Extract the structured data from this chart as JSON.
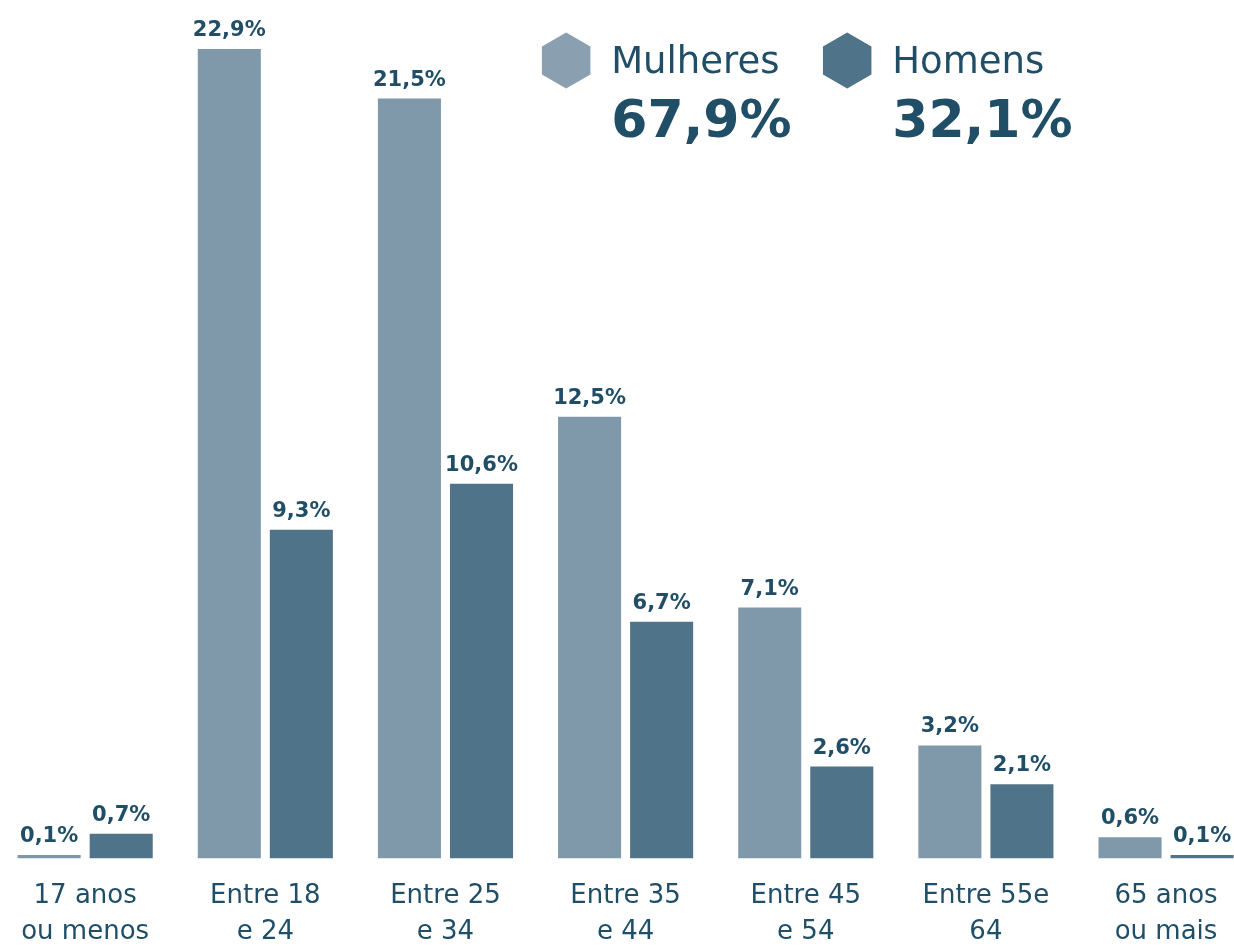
{
  "chart_data": {
    "type": "bar",
    "categories": [
      "17 anos\nou menos",
      "Entre 18\ne 24",
      "Entre 25\ne 34",
      "Entre 35\ne 44",
      "Entre 45\ne 54",
      "Entre 55e\n64",
      "65 anos\nou mais"
    ],
    "series": [
      {
        "name": "Mulheres",
        "color": "#7f99aa",
        "values": [
          0.1,
          22.9,
          21.5,
          12.5,
          7.1,
          3.2,
          0.6
        ],
        "value_labels": [
          "0,1%",
          "22,9%",
          "21,5%",
          "12,5%",
          "7,1%",
          "3,2%",
          "0,6%"
        ]
      },
      {
        "name": "Homens",
        "color": "#4f7489",
        "values": [
          0.7,
          9.3,
          10.6,
          6.7,
          2.6,
          2.1,
          0.1
        ],
        "value_labels": [
          "0,7%",
          "9,3%",
          "10,6%",
          "6,7%",
          "2,6%",
          "2,1%",
          "0,1%"
        ]
      }
    ],
    "annotations": [
      "67,9%",
      "32,1%"
    ],
    "legend": "top right",
    "grid": false
  }
}
